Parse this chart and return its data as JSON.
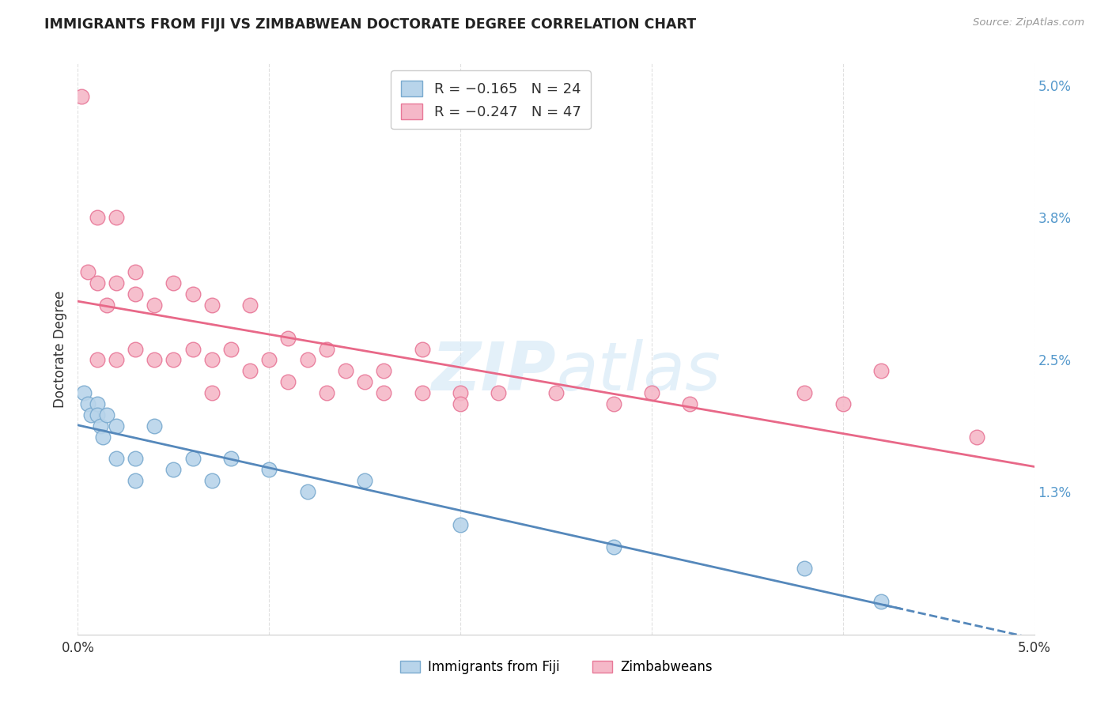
{
  "title": "IMMIGRANTS FROM FIJI VS ZIMBABWEAN DOCTORATE DEGREE CORRELATION CHART",
  "source": "Source: ZipAtlas.com",
  "ylabel": "Doctorate Degree",
  "right_yticks": [
    "5.0%",
    "3.8%",
    "2.5%",
    "1.3%"
  ],
  "right_ytick_vals": [
    0.05,
    0.038,
    0.025,
    0.013
  ],
  "legend_label_fiji": "Immigrants from Fiji",
  "legend_label_zimb": "Zimbabweans",
  "fiji_color": "#b8d4ea",
  "fiji_edge_color": "#7aaacf",
  "zimb_color": "#f5b8c8",
  "zimb_edge_color": "#e87898",
  "fiji_line_color": "#5588bb",
  "zimb_line_color": "#e86888",
  "watermark_text": "ZIPatlas",
  "xmin": 0.0,
  "xmax": 0.05,
  "ymin": 0.0,
  "ymax": 0.052,
  "fiji_x": [
    0.0003,
    0.0005,
    0.0007,
    0.001,
    0.001,
    0.0012,
    0.0013,
    0.0015,
    0.002,
    0.002,
    0.003,
    0.003,
    0.004,
    0.005,
    0.006,
    0.007,
    0.008,
    0.01,
    0.012,
    0.015,
    0.02,
    0.028,
    0.038,
    0.042
  ],
  "fiji_y": [
    0.022,
    0.021,
    0.02,
    0.021,
    0.02,
    0.019,
    0.018,
    0.02,
    0.019,
    0.016,
    0.016,
    0.014,
    0.019,
    0.015,
    0.016,
    0.014,
    0.016,
    0.015,
    0.013,
    0.014,
    0.01,
    0.008,
    0.006,
    0.003
  ],
  "zimb_x": [
    0.0002,
    0.0005,
    0.001,
    0.001,
    0.001,
    0.0015,
    0.002,
    0.002,
    0.002,
    0.003,
    0.003,
    0.003,
    0.004,
    0.004,
    0.005,
    0.005,
    0.006,
    0.006,
    0.007,
    0.007,
    0.007,
    0.008,
    0.009,
    0.009,
    0.01,
    0.011,
    0.011,
    0.012,
    0.013,
    0.013,
    0.014,
    0.015,
    0.016,
    0.016,
    0.018,
    0.018,
    0.02,
    0.02,
    0.022,
    0.025,
    0.028,
    0.03,
    0.032,
    0.038,
    0.04,
    0.042,
    0.047
  ],
  "zimb_y": [
    0.049,
    0.033,
    0.038,
    0.032,
    0.025,
    0.03,
    0.038,
    0.032,
    0.025,
    0.033,
    0.031,
    0.026,
    0.03,
    0.025,
    0.032,
    0.025,
    0.031,
    0.026,
    0.03,
    0.025,
    0.022,
    0.026,
    0.03,
    0.024,
    0.025,
    0.027,
    0.023,
    0.025,
    0.026,
    0.022,
    0.024,
    0.023,
    0.024,
    0.022,
    0.026,
    0.022,
    0.022,
    0.021,
    0.022,
    0.022,
    0.021,
    0.022,
    0.021,
    0.022,
    0.021,
    0.024,
    0.018
  ],
  "grid_color": "#e0e0e0",
  "grid_style": "--",
  "legend_r_fiji": "R = −0.165",
  "legend_n_fiji": "N = 24",
  "legend_r_zimb": "R = −0.247",
  "legend_n_zimb": "N = 47"
}
